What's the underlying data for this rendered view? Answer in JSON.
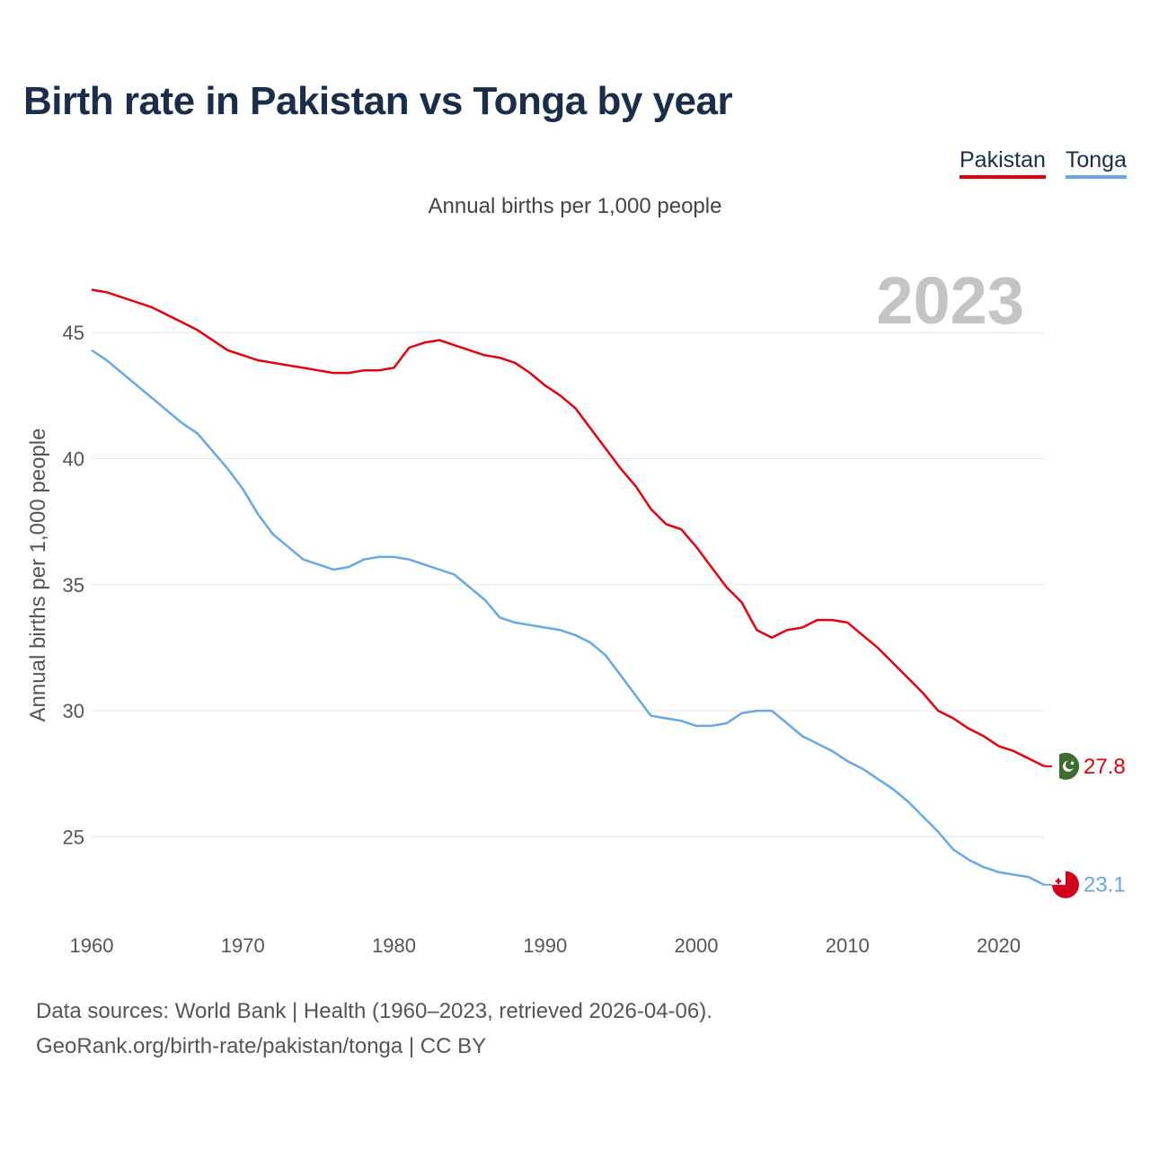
{
  "title": "Birth rate in Pakistan vs Tonga by year",
  "legend": [
    {
      "name": "Pakistan",
      "color": "#e8000b"
    },
    {
      "name": "Tonga",
      "color": "#64a8e8"
    }
  ],
  "subtitle": "Annual births per 1,000 people",
  "footer": {
    "line1": "Data sources: World Bank | Health (1960–2023, retrieved 2026-04-06).",
    "line2": "GeoRank.org/birth-rate/pakistan/tonga | CC BY"
  },
  "chart_data": {
    "type": "line",
    "title": "Birth rate in Pakistan vs Tonga by year",
    "xlabel": "",
    "ylabel": "Annual births per 1,000 people",
    "xlim": [
      1960,
      2023
    ],
    "ylim": [
      22.2,
      47.5
    ],
    "x_ticks": [
      1960,
      1970,
      1980,
      1990,
      2000,
      2010,
      2020
    ],
    "y_ticks": [
      25,
      30,
      35,
      40,
      45
    ],
    "grid": true,
    "year_label": "2023",
    "x": [
      1960,
      1961,
      1962,
      1963,
      1964,
      1965,
      1966,
      1967,
      1968,
      1969,
      1970,
      1971,
      1972,
      1973,
      1974,
      1975,
      1976,
      1977,
      1978,
      1979,
      1980,
      1981,
      1982,
      1983,
      1984,
      1985,
      1986,
      1987,
      1988,
      1989,
      1990,
      1991,
      1992,
      1993,
      1994,
      1995,
      1996,
      1997,
      1998,
      1999,
      2000,
      2001,
      2002,
      2003,
      2004,
      2005,
      2006,
      2007,
      2008,
      2009,
      2010,
      2011,
      2012,
      2013,
      2014,
      2015,
      2016,
      2017,
      2018,
      2019,
      2020,
      2021,
      2022,
      2023
    ],
    "series": [
      {
        "name": "Pakistan",
        "color": "#e8000b",
        "end_label": "27.8",
        "values": [
          46.7,
          46.6,
          46.4,
          46.2,
          46.0,
          45.7,
          45.4,
          45.1,
          44.7,
          44.3,
          44.1,
          43.9,
          43.8,
          43.7,
          43.6,
          43.5,
          43.4,
          43.4,
          43.5,
          43.5,
          43.6,
          44.4,
          44.6,
          44.7,
          44.5,
          44.3,
          44.1,
          44.0,
          43.8,
          43.4,
          42.9,
          42.5,
          42.0,
          41.2,
          40.4,
          39.6,
          38.9,
          38.0,
          37.4,
          37.2,
          36.5,
          35.7,
          34.9,
          34.3,
          33.2,
          32.9,
          33.2,
          33.3,
          33.6,
          33.6,
          33.5,
          33.0,
          32.5,
          31.9,
          31.3,
          30.7,
          30.0,
          29.7,
          29.3,
          29.0,
          28.6,
          28.4,
          28.1,
          27.8
        ]
      },
      {
        "name": "Tonga",
        "color": "#64a8e8",
        "end_label": "23.1",
        "values": [
          44.3,
          43.9,
          43.4,
          42.9,
          42.4,
          41.9,
          41.4,
          41.0,
          40.3,
          39.6,
          38.8,
          37.8,
          37.0,
          36.5,
          36.0,
          35.8,
          35.6,
          35.7,
          36.0,
          36.1,
          36.1,
          36.0,
          35.8,
          35.6,
          35.4,
          34.9,
          34.4,
          33.7,
          33.5,
          33.4,
          33.3,
          33.2,
          33.0,
          32.7,
          32.2,
          31.4,
          30.6,
          29.8,
          29.7,
          29.6,
          29.4,
          29.4,
          29.5,
          29.9,
          30.0,
          30.0,
          29.5,
          29.0,
          28.7,
          28.4,
          28.0,
          27.7,
          27.3,
          26.9,
          26.4,
          25.8,
          25.2,
          24.5,
          24.1,
          23.8,
          23.6,
          23.5,
          23.4,
          23.1
        ]
      }
    ]
  }
}
